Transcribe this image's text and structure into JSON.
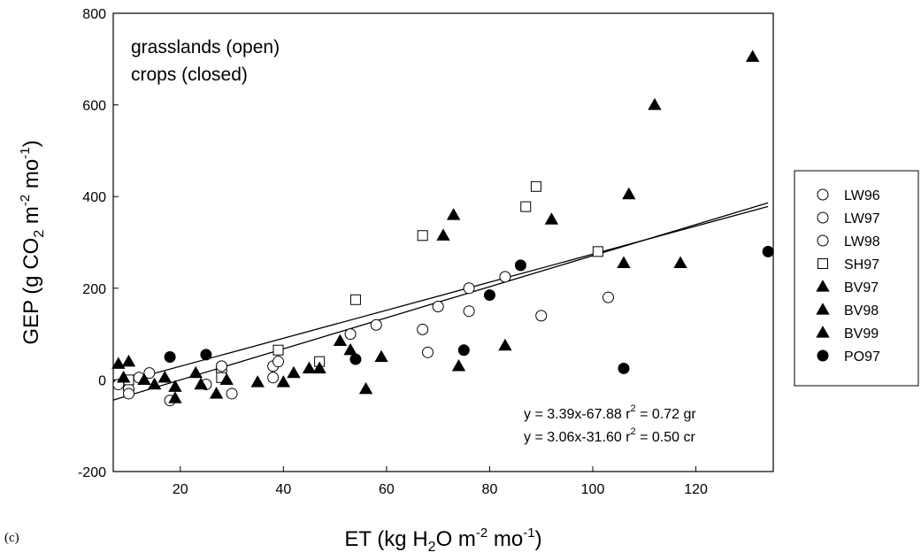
{
  "panel_label": "(c)",
  "chart_data": {
    "type": "scatter",
    "title": "",
    "xlabel": {
      "pre": "ET (kg H",
      "sub": "2",
      "mid": "O m",
      "sup": "-2",
      "post": " mo",
      "sup2": "-1",
      "end": ")"
    },
    "ylabel": {
      "pre": "GEP (g CO",
      "sub": "2",
      "mid": " m",
      "sup": "-2",
      "post": " mo",
      "sup2": "-1",
      "end": ")"
    },
    "xlim": [
      7,
      135
    ],
    "ylim": [
      -200,
      800
    ],
    "xticks": [
      20,
      40,
      60,
      80,
      100,
      120
    ],
    "yticks": [
      -200,
      0,
      200,
      400,
      600,
      800
    ],
    "annotation_lines": [
      "grasslands (open)",
      "crops (closed)"
    ],
    "equations": [
      {
        "pre": "y = 3.39x-67.88 r",
        "sup": "2",
        "post": " = 0.72 gr"
      },
      {
        "pre": "y = 3.06x-31.60 r",
        "sup": "2",
        "post": " = 0.50 cr"
      }
    ],
    "legend_position": "right",
    "series": [
      {
        "name": "LW96",
        "marker": "circle-open",
        "points": [
          [
            8,
            -10
          ],
          [
            10,
            -20
          ],
          [
            10,
            -30
          ],
          [
            12,
            5
          ],
          [
            14,
            15
          ],
          [
            18,
            -45
          ],
          [
            25,
            -10
          ],
          [
            28,
            20
          ],
          [
            28,
            30
          ],
          [
            30,
            -30
          ],
          [
            38,
            5
          ],
          [
            38,
            30
          ],
          [
            39,
            40
          ],
          [
            53,
            100
          ]
        ]
      },
      {
        "name": "LW97",
        "marker": "circle-open",
        "points": [
          [
            58,
            120
          ],
          [
            67,
            110
          ],
          [
            68,
            60
          ],
          [
            70,
            160
          ],
          [
            76,
            200
          ],
          [
            76,
            150
          ],
          [
            83,
            225
          ]
        ]
      },
      {
        "name": "LW98",
        "marker": "circle-open",
        "points": [
          [
            90,
            140
          ],
          [
            103,
            180
          ]
        ]
      },
      {
        "name": "SH97",
        "marker": "square-open",
        "points": [
          [
            10,
            0
          ],
          [
            28,
            5
          ],
          [
            39,
            65
          ],
          [
            47,
            40
          ],
          [
            54,
            175
          ],
          [
            67,
            315
          ],
          [
            87,
            378
          ],
          [
            89,
            422
          ],
          [
            101,
            280
          ]
        ]
      },
      {
        "name": "BV97",
        "marker": "triangle-filled",
        "points": [
          [
            8,
            35
          ],
          [
            9,
            5
          ],
          [
            10,
            40
          ],
          [
            13,
            0
          ],
          [
            15,
            -10
          ],
          [
            17,
            5
          ],
          [
            19,
            -15
          ],
          [
            19,
            -40
          ],
          [
            23,
            15
          ],
          [
            24,
            -10
          ],
          [
            27,
            -30
          ],
          [
            29,
            0
          ],
          [
            35,
            -5
          ],
          [
            40,
            -5
          ],
          [
            42,
            15
          ]
        ]
      },
      {
        "name": "BV98",
        "marker": "triangle-filled",
        "points": [
          [
            45,
            25
          ],
          [
            47,
            25
          ],
          [
            51,
            85
          ],
          [
            53,
            65
          ],
          [
            56,
            -20
          ],
          [
            59,
            50
          ],
          [
            71,
            315
          ],
          [
            73,
            360
          ],
          [
            74,
            30
          ],
          [
            83,
            75
          ],
          [
            92,
            350
          ]
        ]
      },
      {
        "name": "BV99",
        "marker": "triangle-filled",
        "points": [
          [
            106,
            255
          ],
          [
            107,
            405
          ],
          [
            112,
            600
          ],
          [
            117,
            255
          ],
          [
            131,
            705
          ]
        ]
      },
      {
        "name": "PO97",
        "marker": "circle-filled",
        "points": [
          [
            18,
            50
          ],
          [
            25,
            55
          ],
          [
            54,
            45
          ],
          [
            75,
            65
          ],
          [
            80,
            185
          ],
          [
            86,
            250
          ],
          [
            106,
            25
          ],
          [
            134,
            280
          ]
        ]
      }
    ],
    "regression_lines": [
      {
        "slope": 3.39,
        "intercept": -67.88,
        "x_range": [
          7,
          134
        ]
      },
      {
        "slope": 3.06,
        "intercept": -31.6,
        "x_range": [
          7,
          134
        ]
      }
    ]
  }
}
